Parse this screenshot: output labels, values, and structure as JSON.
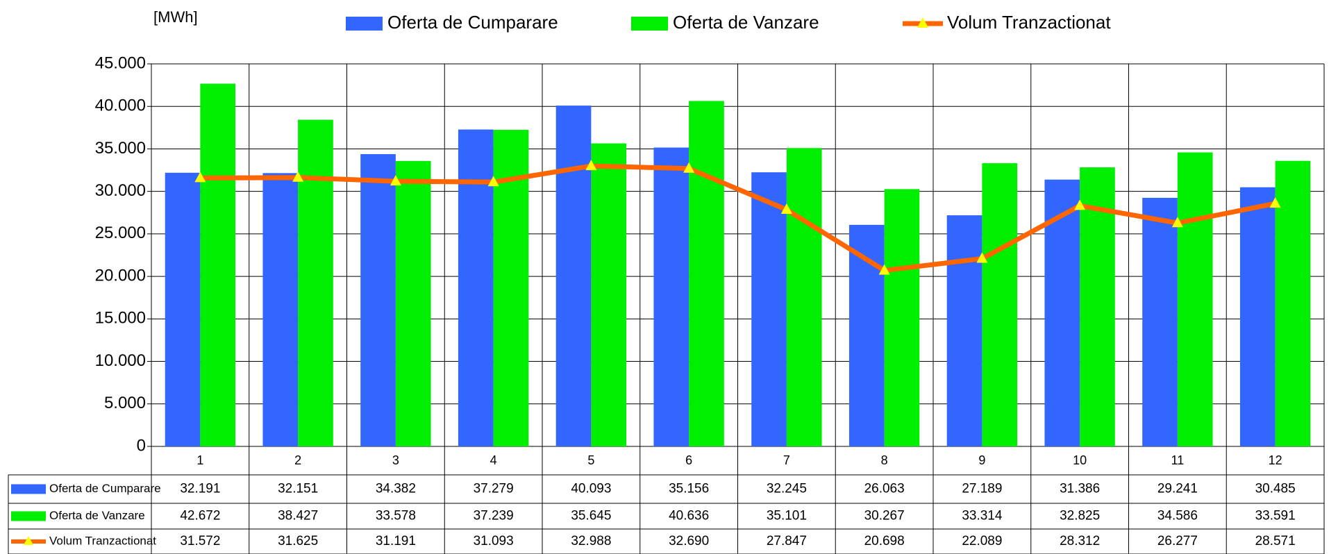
{
  "chart_data": {
    "type": "bar",
    "unit_label": "[MWh]",
    "categories": [
      "1",
      "2",
      "3",
      "4",
      "5",
      "6",
      "7",
      "8",
      "9",
      "10",
      "11",
      "12"
    ],
    "series": [
      {
        "name": "Oferta de Cumparare",
        "color": "#3366ff",
        "values": [
          32191,
          32151,
          34382,
          37279,
          40093,
          35156,
          32245,
          26063,
          27189,
          31386,
          29241,
          30485
        ],
        "value_labels": [
          "32.191",
          "32.151",
          "34.382",
          "37.279",
          "40.093",
          "35.156",
          "32.245",
          "26.063",
          "27.189",
          "31.386",
          "29.241",
          "30.485"
        ]
      },
      {
        "name": "Oferta de Vanzare",
        "color": "#00ee00",
        "values": [
          42672,
          38427,
          33578,
          37239,
          35645,
          40636,
          35101,
          30267,
          33314,
          32825,
          34586,
          33591
        ],
        "value_labels": [
          "42.672",
          "38.427",
          "33.578",
          "37.239",
          "35.645",
          "40.636",
          "35.101",
          "30.267",
          "33.314",
          "32.825",
          "34.586",
          "33.591"
        ]
      },
      {
        "name": "Volum Tranzactionat",
        "type": "line",
        "color": "#ff6600",
        "marker_color": "#ffff00",
        "values": [
          31572,
          31625,
          31191,
          31093,
          32988,
          32690,
          27847,
          20698,
          22089,
          28312,
          26277,
          28571
        ],
        "value_labels": [
          "31.572",
          "31.625",
          "31.191",
          "31.093",
          "32.988",
          "32.690",
          "27.847",
          "20.698",
          "22.089",
          "28.312",
          "26.277",
          "28.571"
        ]
      }
    ],
    "ylim": [
      0,
      45000
    ],
    "yticks": [
      0,
      {
        "value": 5000,
        "label": "5.000"
      },
      {
        "value": 10000,
        "label": "10.000"
      },
      {
        "value": 15000,
        "label": "15.000"
      },
      {
        "value": 20000,
        "label": "20.000"
      },
      {
        "value": 25000,
        "label": "25.000"
      },
      {
        "value": 30000,
        "label": "30.000"
      },
      {
        "value": 35000,
        "label": "35.000"
      },
      {
        "value": 40000,
        "label": "40.000"
      },
      {
        "value": 45000,
        "label": "45.000"
      }
    ],
    "grid": true,
    "legend": "top"
  }
}
